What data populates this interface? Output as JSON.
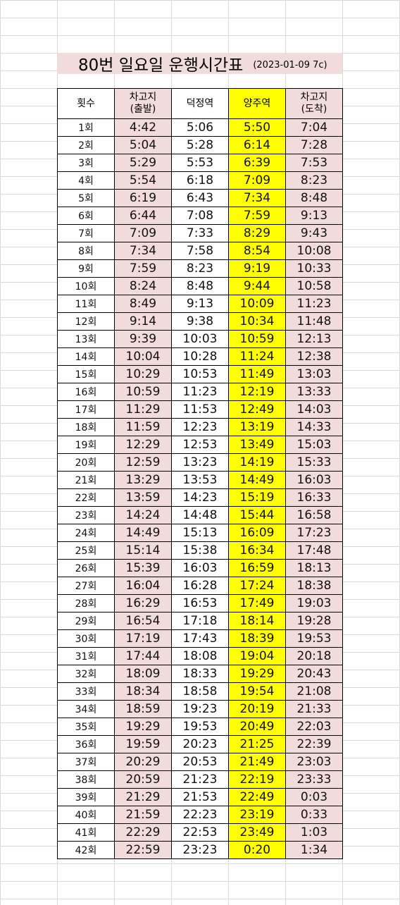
{
  "title": {
    "main": "80번 일요일 운행시간표",
    "note": "(2023-01-09 7c)"
  },
  "headers": {
    "count": "횟수",
    "depot_depart": "차고지\n(출발)",
    "deokjeong": "덕정역",
    "yangju": "양주역",
    "depot_arrive": "차고지\n(도착)"
  },
  "colors": {
    "pink": "#f2dcdb",
    "yellow": "#ffff00",
    "grid": "#d9d9d9"
  },
  "rows": [
    {
      "n": "1회",
      "d": "4:42",
      "k": "5:06",
      "y": "5:50",
      "a": "7:04"
    },
    {
      "n": "2회",
      "d": "5:04",
      "k": "5:28",
      "y": "6:14",
      "a": "7:28"
    },
    {
      "n": "3회",
      "d": "5:29",
      "k": "5:53",
      "y": "6:39",
      "a": "7:53"
    },
    {
      "n": "4회",
      "d": "5:54",
      "k": "6:18",
      "y": "7:09",
      "a": "8:23"
    },
    {
      "n": "5회",
      "d": "6:19",
      "k": "6:43",
      "y": "7:34",
      "a": "8:48"
    },
    {
      "n": "6회",
      "d": "6:44",
      "k": "7:08",
      "y": "7:59",
      "a": "9:13"
    },
    {
      "n": "7회",
      "d": "7:09",
      "k": "7:33",
      "y": "8:29",
      "a": "9:43"
    },
    {
      "n": "8회",
      "d": "7:34",
      "k": "7:58",
      "y": "8:54",
      "a": "10:08"
    },
    {
      "n": "9회",
      "d": "7:59",
      "k": "8:23",
      "y": "9:19",
      "a": "10:33"
    },
    {
      "n": "10회",
      "d": "8:24",
      "k": "8:48",
      "y": "9:44",
      "a": "10:58"
    },
    {
      "n": "11회",
      "d": "8:49",
      "k": "9:13",
      "y": "10:09",
      "a": "11:23"
    },
    {
      "n": "12회",
      "d": "9:14",
      "k": "9:38",
      "y": "10:34",
      "a": "11:48"
    },
    {
      "n": "13회",
      "d": "9:39",
      "k": "10:03",
      "y": "10:59",
      "a": "12:13"
    },
    {
      "n": "14회",
      "d": "10:04",
      "k": "10:28",
      "y": "11:24",
      "a": "12:38"
    },
    {
      "n": "15회",
      "d": "10:29",
      "k": "10:53",
      "y": "11:49",
      "a": "13:03"
    },
    {
      "n": "16회",
      "d": "10:59",
      "k": "11:23",
      "y": "12:19",
      "a": "13:33"
    },
    {
      "n": "17회",
      "d": "11:29",
      "k": "11:53",
      "y": "12:49",
      "a": "14:03"
    },
    {
      "n": "18회",
      "d": "11:59",
      "k": "12:23",
      "y": "13:19",
      "a": "14:33"
    },
    {
      "n": "19회",
      "d": "12:29",
      "k": "12:53",
      "y": "13:49",
      "a": "15:03"
    },
    {
      "n": "20회",
      "d": "12:59",
      "k": "13:23",
      "y": "14:19",
      "a": "15:33"
    },
    {
      "n": "21회",
      "d": "13:29",
      "k": "13:53",
      "y": "14:49",
      "a": "16:03"
    },
    {
      "n": "22회",
      "d": "13:59",
      "k": "14:23",
      "y": "15:19",
      "a": "16:33"
    },
    {
      "n": "23회",
      "d": "14:24",
      "k": "14:48",
      "y": "15:44",
      "a": "16:58"
    },
    {
      "n": "24회",
      "d": "14:49",
      "k": "15:13",
      "y": "16:09",
      "a": "17:23"
    },
    {
      "n": "25회",
      "d": "15:14",
      "k": "15:38",
      "y": "16:34",
      "a": "17:48"
    },
    {
      "n": "26회",
      "d": "15:39",
      "k": "16:03",
      "y": "16:59",
      "a": "18:13"
    },
    {
      "n": "27회",
      "d": "16:04",
      "k": "16:28",
      "y": "17:24",
      "a": "18:38"
    },
    {
      "n": "28회",
      "d": "16:29",
      "k": "16:53",
      "y": "17:49",
      "a": "19:03"
    },
    {
      "n": "29회",
      "d": "16:54",
      "k": "17:18",
      "y": "18:14",
      "a": "19:28"
    },
    {
      "n": "30회",
      "d": "17:19",
      "k": "17:43",
      "y": "18:39",
      "a": "19:53"
    },
    {
      "n": "31회",
      "d": "17:44",
      "k": "18:08",
      "y": "19:04",
      "a": "20:18"
    },
    {
      "n": "32회",
      "d": "18:09",
      "k": "18:33",
      "y": "19:29",
      "a": "20:43"
    },
    {
      "n": "33회",
      "d": "18:34",
      "k": "18:58",
      "y": "19:54",
      "a": "21:08"
    },
    {
      "n": "34회",
      "d": "18:59",
      "k": "19:23",
      "y": "20:19",
      "a": "21:33"
    },
    {
      "n": "35회",
      "d": "19:29",
      "k": "19:53",
      "y": "20:49",
      "a": "22:03"
    },
    {
      "n": "36회",
      "d": "19:59",
      "k": "20:23",
      "y": "21:25",
      "a": "22:39"
    },
    {
      "n": "37회",
      "d": "20:29",
      "k": "20:53",
      "y": "21:49",
      "a": "23:03"
    },
    {
      "n": "38회",
      "d": "20:59",
      "k": "21:23",
      "y": "22:19",
      "a": "23:33"
    },
    {
      "n": "39회",
      "d": "21:29",
      "k": "21:53",
      "y": "22:49",
      "a": "0:03"
    },
    {
      "n": "40회",
      "d": "21:59",
      "k": "22:23",
      "y": "23:19",
      "a": "0:33"
    },
    {
      "n": "41회",
      "d": "22:29",
      "k": "22:53",
      "y": "23:49",
      "a": "1:03"
    },
    {
      "n": "42회",
      "d": "22:59",
      "k": "23:23",
      "y": "0:20",
      "a": "1:34"
    }
  ]
}
